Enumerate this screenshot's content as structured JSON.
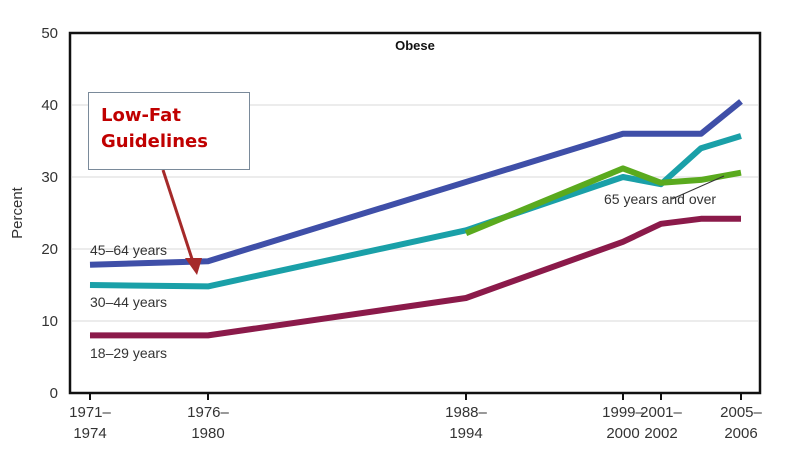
{
  "chart_data": {
    "type": "line",
    "title": "Obese",
    "xlabel": "",
    "ylabel": "Percent",
    "ylim": [
      0,
      50
    ],
    "yticks": [
      "0",
      "10",
      "20",
      "30",
      "40",
      "50"
    ],
    "x_categories": [
      {
        "line1": "1971–",
        "line2": "1974"
      },
      {
        "line1": "1976–",
        "line2": "1980"
      },
      {
        "line1": "1988–",
        "line2": "1994"
      },
      {
        "line1": "1999–",
        "line2": "2000"
      },
      {
        "line1": "2001–",
        "line2": "2002"
      },
      {
        "line1": "2005–",
        "line2": "2006"
      }
    ],
    "x_years": [
      1972.5,
      1978,
      1991,
      2000,
      2002,
      2003.75,
      2006
    ],
    "series": [
      {
        "name": "45–64 years",
        "color": "#3f4fa8",
        "points": [
          [
            1972.5,
            17.8
          ],
          [
            1978,
            18.3
          ],
          [
            2000,
            36
          ],
          [
            2002,
            36
          ],
          [
            2003.75,
            36
          ],
          [
            2006,
            40.5
          ]
        ]
      },
      {
        "name": "30–44 years",
        "color": "#1aa0a8",
        "points": [
          [
            1972.5,
            15
          ],
          [
            1978,
            14.8
          ],
          [
            1991,
            22.6
          ],
          [
            2000,
            30
          ],
          [
            2002,
            29
          ],
          [
            2003.75,
            34
          ],
          [
            2006,
            35.7
          ]
        ]
      },
      {
        "name": "18–29 years",
        "color": "#8b1a4a",
        "points": [
          [
            1972.5,
            8
          ],
          [
            1978,
            8
          ],
          [
            1991,
            13.2
          ],
          [
            2000,
            21
          ],
          [
            2002,
            23.5
          ],
          [
            2003.75,
            24.2
          ],
          [
            2006,
            24.2
          ]
        ]
      },
      {
        "name": "65 years and over",
        "color": "#5aaa1e",
        "points": [
          [
            1991,
            22.2
          ],
          [
            2000,
            31.2
          ],
          [
            2002,
            29.2
          ],
          [
            2003.75,
            29.6
          ],
          [
            2006,
            30.6
          ]
        ]
      }
    ],
    "annotations": {
      "callout": "Low-Fat Guidelines",
      "callout_line1": "Low-Fat",
      "callout_line2": "Guidelines",
      "arrow_color": "#a52a2a",
      "arrow_target_year": 1978
    },
    "grid": true,
    "legend": "inline labels"
  }
}
